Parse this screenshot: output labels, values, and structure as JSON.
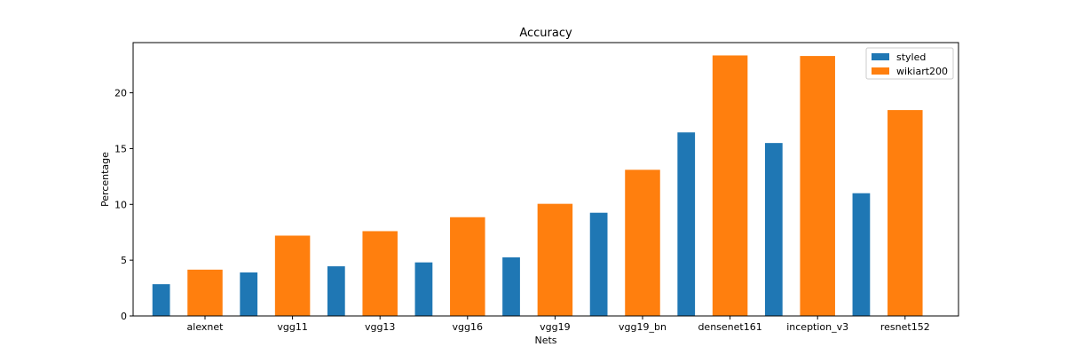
{
  "chart_data": {
    "type": "bar",
    "title": "Accuracy",
    "xlabel": "Nets",
    "ylabel": "Percentage",
    "categories": [
      "alexnet",
      "vgg11",
      "vgg13",
      "vgg16",
      "vgg19",
      "vgg19_bn",
      "densenet161",
      "inception_v3",
      "resnet152"
    ],
    "series": [
      {
        "name": "styled",
        "color": "#1f77b4",
        "values": [
          2.85,
          3.9,
          4.45,
          4.8,
          5.25,
          9.25,
          16.45,
          15.5,
          11.0
        ]
      },
      {
        "name": "wikiart200",
        "color": "#ff7f0e",
        "values": [
          4.15,
          7.2,
          7.6,
          8.85,
          10.05,
          13.1,
          23.35,
          23.3,
          18.45
        ]
      }
    ],
    "yticks": [
      0,
      5,
      10,
      15,
      20
    ],
    "ylim": [
      0,
      24.5
    ],
    "grid": false,
    "legend_position": "top-right"
  }
}
